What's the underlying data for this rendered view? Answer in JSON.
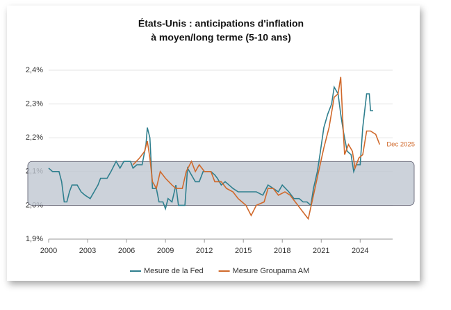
{
  "chart_data": {
    "type": "line",
    "title": [
      "États-Unis : anticipations d'inflation",
      "à moyen/long terme (5-10 ans)"
    ],
    "annotation": "Dec 2025",
    "band": [
      2.0,
      2.13
    ],
    "band_color": "#bfc7d1",
    "xlim": [
      2000,
      2026.5
    ],
    "xticks": [
      2000,
      2003,
      2006,
      2009,
      2012,
      2015,
      2018,
      2021,
      2024
    ],
    "ylim": [
      1.9,
      2.4
    ],
    "yticks": [
      {
        "value": 1.9,
        "label": "1,9%"
      },
      {
        "value": 2.0,
        "label": "2,0%"
      },
      {
        "value": 2.1,
        "label": "2,1%"
      },
      {
        "value": 2.2,
        "label": "2,2%"
      },
      {
        "value": 2.3,
        "label": "2,3%"
      },
      {
        "value": 2.4,
        "label": "2,4%"
      }
    ],
    "grid": true,
    "legend": "bottom",
    "series": [
      {
        "name": "Mesure de la Fed",
        "color": "#2f7f8e",
        "x": [
          2000,
          2000.3,
          2000.8,
          2001,
          2001.2,
          2001.4,
          2001.6,
          2001.8,
          2002.2,
          2002.5,
          2002.8,
          2003.2,
          2003.5,
          2003.8,
          2004,
          2004.5,
          2004.8,
          2005.2,
          2005.5,
          2005.8,
          2006.3,
          2006.5,
          2006.8,
          2007.2,
          2007.5,
          2007.6,
          2007.8,
          2008,
          2008.3,
          2008.5,
          2008.8,
          2009,
          2009.2,
          2009.5,
          2009.8,
          2010,
          2010.5,
          2010.7,
          2011,
          2011.3,
          2011.6,
          2011.9,
          2012.5,
          2012.8,
          2013,
          2013.3,
          2013.6,
          2013.9,
          2014.2,
          2014.6,
          2015,
          2015.5,
          2016,
          2016.5,
          2016.9,
          2017.3,
          2017.7,
          2018,
          2018.5,
          2018.9,
          2019.3,
          2019.6,
          2019.9,
          2020.2,
          2020.4,
          2020.7,
          2020.9,
          2021.2,
          2021.5,
          2021.8,
          2022,
          2022.3,
          2022.5,
          2022.7,
          2023,
          2023.3,
          2023.5,
          2023.7,
          2024,
          2024.2,
          2024.5,
          2024.7,
          2024.8,
          2025
        ],
        "values": [
          2.11,
          2.1,
          2.1,
          2.07,
          2.01,
          2.01,
          2.04,
          2.06,
          2.06,
          2.04,
          2.03,
          2.02,
          2.04,
          2.06,
          2.08,
          2.08,
          2.1,
          2.13,
          2.11,
          2.13,
          2.13,
          2.11,
          2.12,
          2.12,
          2.18,
          2.23,
          2.2,
          2.05,
          2.05,
          2.01,
          2.01,
          1.99,
          2.02,
          2.01,
          2.06,
          2.0,
          2.0,
          2.11,
          2.09,
          2.07,
          2.07,
          2.1,
          2.1,
          2.09,
          2.08,
          2.06,
          2.07,
          2.06,
          2.05,
          2.04,
          2.04,
          2.04,
          2.04,
          2.03,
          2.06,
          2.05,
          2.04,
          2.06,
          2.04,
          2.02,
          2.02,
          2.01,
          2.01,
          2.0,
          2.05,
          2.1,
          2.15,
          2.23,
          2.27,
          2.3,
          2.35,
          2.33,
          2.27,
          2.22,
          2.16,
          2.15,
          2.1,
          2.12,
          2.12,
          2.23,
          2.33,
          2.33,
          2.28,
          2.28
        ]
      },
      {
        "name": "Mesure Groupama AM",
        "color": "#d0692b",
        "x": [
          2006.5,
          2007,
          2007.4,
          2007.6,
          2007.8,
          2008,
          2008.3,
          2008.6,
          2009,
          2009.5,
          2009.8,
          2010.3,
          2010.6,
          2011,
          2011.3,
          2011.6,
          2012,
          2012.5,
          2012.8,
          2013.3,
          2013.7,
          2014.2,
          2014.6,
          2015.2,
          2015.6,
          2016,
          2016.6,
          2016.9,
          2017.3,
          2017.7,
          2018.2,
          2018.6,
          2019,
          2019.4,
          2019.8,
          2020,
          2020.4,
          2020.8,
          2021.2,
          2021.6,
          2022,
          2022.3,
          2022.5,
          2022.7,
          2022.8,
          2023.1,
          2023.4,
          2023.6,
          2023.9,
          2024.2,
          2024.5,
          2024.8,
          2025.2,
          2025.5
        ],
        "values": [
          2.12,
          2.14,
          2.16,
          2.19,
          2.14,
          2.07,
          2.05,
          2.1,
          2.08,
          2.06,
          2.05,
          2.05,
          2.1,
          2.13,
          2.1,
          2.12,
          2.1,
          2.1,
          2.07,
          2.07,
          2.05,
          2.04,
          2.02,
          2.0,
          1.97,
          2.0,
          2.01,
          2.05,
          2.05,
          2.03,
          2.04,
          2.03,
          2.01,
          1.99,
          1.97,
          1.96,
          2.03,
          2.1,
          2.17,
          2.23,
          2.32,
          2.33,
          2.38,
          2.22,
          2.15,
          2.18,
          2.16,
          2.11,
          2.14,
          2.15,
          2.22,
          2.22,
          2.21,
          2.18
        ]
      }
    ]
  }
}
